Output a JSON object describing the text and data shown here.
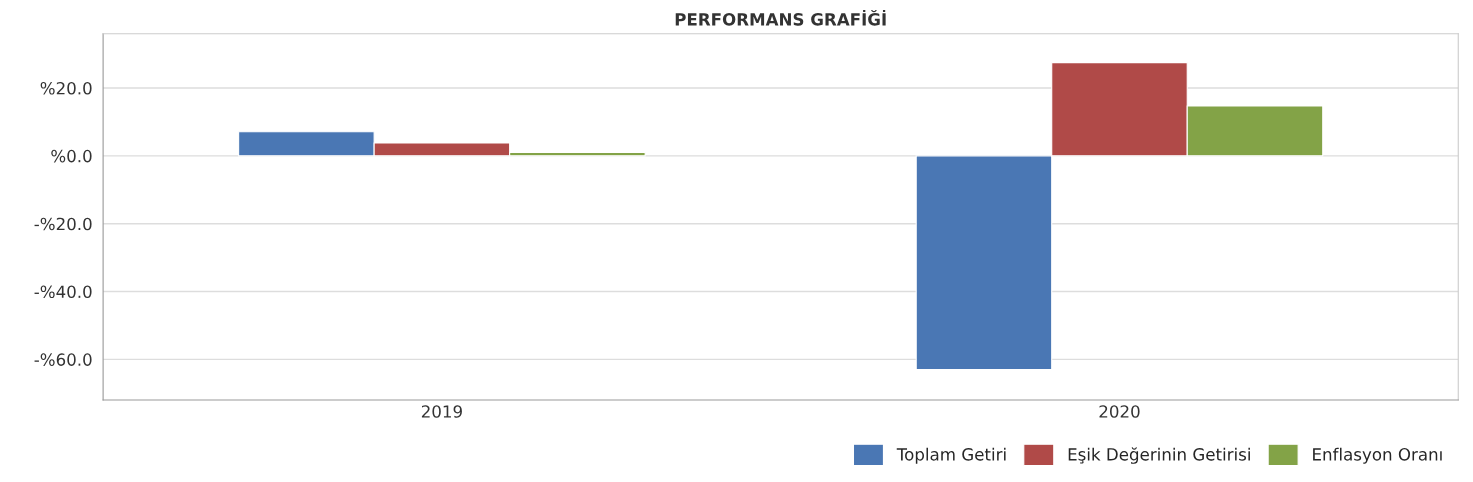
{
  "chart_data": {
    "type": "bar",
    "title": "PERFORMANS GRAFİĞİ",
    "categories": [
      "2019",
      "2020"
    ],
    "series": [
      {
        "name": "Toplam Getiri",
        "color": "#4a77b4",
        "values": [
          7.1,
          -63.0
        ]
      },
      {
        "name": "Eşik Değerinin Getirisi",
        "color": "#b04a48",
        "values": [
          3.8,
          27.5
        ]
      },
      {
        "name": "Enflasyon Oranı",
        "color": "#83a347",
        "values": [
          1.0,
          14.7
        ]
      }
    ],
    "ylim": [
      -72,
      36
    ],
    "yticks": [
      {
        "value": 20,
        "label": "%20.0"
      },
      {
        "value": 0,
        "label": "%0.0"
      },
      {
        "value": -20,
        "label": "-%20.0"
      },
      {
        "value": -40,
        "label": "-%40.0"
      },
      {
        "value": -60,
        "label": "-%60.0"
      }
    ],
    "grid": "y",
    "legend": "bottom right"
  }
}
